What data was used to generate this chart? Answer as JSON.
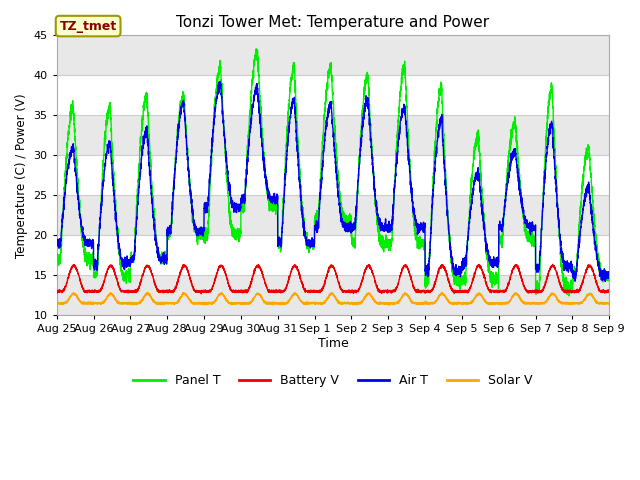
{
  "title": "Tonzi Tower Met: Temperature and Power",
  "xlabel": "Time",
  "ylabel": "Temperature (C) / Power (V)",
  "ylim": [
    10,
    45
  ],
  "yticks": [
    10,
    15,
    20,
    25,
    30,
    35,
    40,
    45
  ],
  "x_labels": [
    "Aug 25",
    "Aug 26",
    "Aug 27",
    "Aug 28",
    "Aug 29",
    "Aug 30",
    "Aug 31",
    "Sep 1",
    "Sep 2",
    "Sep 3",
    "Sep 4",
    "Sep 5",
    "Sep 6",
    "Sep 7",
    "Sep 8",
    "Sep 9"
  ],
  "annotation_text": "TZ_tmet",
  "annotation_text_color": "#8B0000",
  "annotation_bg_color": "#FFFFCC",
  "annotation_border_color": "#999900",
  "colors": {
    "panel_t": "#00EE00",
    "battery_v": "#EE0000",
    "air_t": "#0000EE",
    "solar_v": "#FFA500"
  },
  "legend_labels": [
    "Panel T",
    "Battery V",
    "Air T",
    "Solar V"
  ],
  "background_plot": "#FFFFFF",
  "background_fig": "#FFFFFF",
  "band_color_light": "#FFFFFF",
  "band_color_dark": "#E8E8E8",
  "grid_line_color": "#CCCCCC",
  "n_days": 15,
  "samples_per_day": 288
}
